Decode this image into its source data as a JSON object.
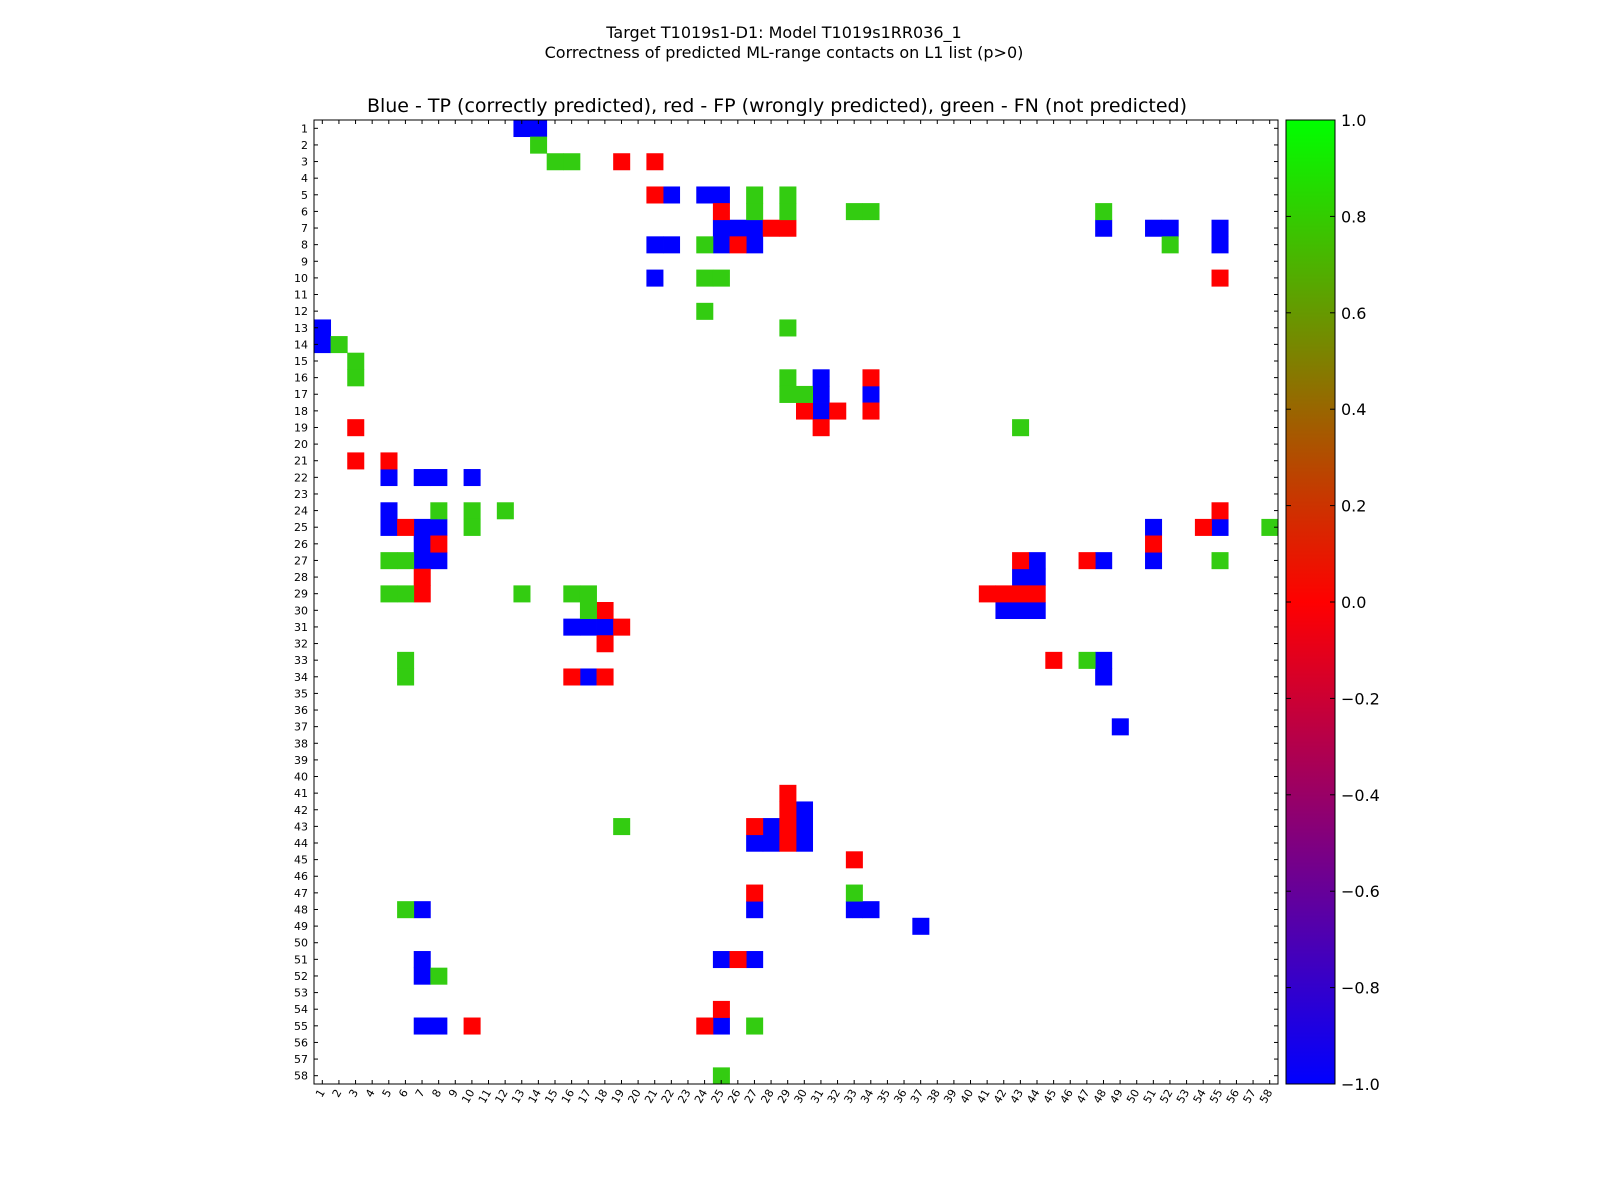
{
  "figure": {
    "suptitle_line1": "Target T1019s1-D1: Model T1019s1RR036_1",
    "suptitle_line2": "Correctness of predicted ML-range contacts on L1 list (p>0)"
  },
  "chart_data": {
    "type": "heatmap",
    "title": "Blue - TP (correctly predicted), red - FP (wrongly predicted), green - FN (not predicted)",
    "n": 58,
    "x_tick_labels": [
      "1",
      "2",
      "3",
      "4",
      "5",
      "6",
      "7",
      "8",
      "9",
      "10",
      "11",
      "12",
      "13",
      "14",
      "15",
      "16",
      "17",
      "18",
      "19",
      "20",
      "21",
      "22",
      "23",
      "24",
      "25",
      "26",
      "27",
      "28",
      "29",
      "30",
      "31",
      "32",
      "33",
      "34",
      "35",
      "36",
      "37",
      "38",
      "39",
      "40",
      "41",
      "42",
      "43",
      "44",
      "45",
      "46",
      "47",
      "48",
      "49",
      "50",
      "51",
      "52",
      "53",
      "54",
      "55",
      "56",
      "57",
      "58"
    ],
    "y_tick_labels": [
      "1",
      "2",
      "3",
      "4",
      "5",
      "6",
      "7",
      "8",
      "9",
      "10",
      "11",
      "12",
      "13",
      "14",
      "15",
      "16",
      "17",
      "18",
      "19",
      "20",
      "21",
      "22",
      "23",
      "24",
      "25",
      "26",
      "27",
      "28",
      "29",
      "30",
      "31",
      "32",
      "33",
      "34",
      "35",
      "36",
      "37",
      "38",
      "39",
      "40",
      "41",
      "42",
      "43",
      "44",
      "45",
      "46",
      "47",
      "48",
      "49",
      "50",
      "51",
      "52",
      "53",
      "54",
      "55",
      "56",
      "57",
      "58"
    ],
    "colorbar": {
      "vmin": -1.0,
      "vmax": 1.0,
      "stops": [
        {
          "value": -1.0,
          "color": "#0000ff"
        },
        {
          "value": 0.0,
          "color": "#ff0000"
        },
        {
          "value": 1.0,
          "color": "#00ff00"
        }
      ],
      "tick_labels": [
        "−1.0",
        "−0.8",
        "−0.6",
        "−0.4",
        "−0.2",
        "0.0",
        "0.2",
        "0.4",
        "0.6",
        "0.8",
        "1.0"
      ]
    },
    "cell_colors": {
      "TP": "#0000ff",
      "FP": "#ff0000",
      "FN": "#33cc11"
    },
    "legend": {
      "TP": "correctly predicted",
      "FP": "wrongly predicted",
      "FN": "not predicted"
    },
    "tp": [
      [
        13,
        1
      ],
      [
        14,
        1
      ],
      [
        22,
        5
      ],
      [
        24,
        5
      ],
      [
        25,
        5
      ],
      [
        21,
        8
      ],
      [
        22,
        8
      ],
      [
        25,
        7
      ],
      [
        25,
        8
      ],
      [
        26,
        7
      ],
      [
        27,
        7
      ],
      [
        48,
        7
      ],
      [
        51,
        7
      ],
      [
        52,
        7
      ],
      [
        55,
        7
      ],
      [
        55,
        8
      ],
      [
        27,
        8
      ],
      [
        21,
        10
      ],
      [
        1,
        13
      ],
      [
        1,
        14
      ],
      [
        31,
        16
      ],
      [
        31,
        17
      ],
      [
        34,
        17
      ],
      [
        31,
        18
      ],
      [
        5,
        22
      ],
      [
        7,
        22
      ],
      [
        8,
        22
      ],
      [
        10,
        22
      ],
      [
        5,
        24
      ],
      [
        5,
        25
      ],
      [
        7,
        25
      ],
      [
        8,
        25
      ],
      [
        51,
        25
      ],
      [
        55,
        25
      ],
      [
        7,
        26
      ],
      [
        7,
        27
      ],
      [
        8,
        27
      ],
      [
        44,
        27
      ],
      [
        48,
        27
      ],
      [
        51,
        27
      ],
      [
        43,
        28
      ],
      [
        44,
        28
      ],
      [
        42,
        30
      ],
      [
        43,
        30
      ],
      [
        44,
        30
      ],
      [
        16,
        31
      ],
      [
        17,
        31
      ],
      [
        18,
        31
      ],
      [
        48,
        33
      ],
      [
        17,
        34
      ],
      [
        48,
        34
      ],
      [
        49,
        37
      ],
      [
        30,
        42
      ],
      [
        28,
        43
      ],
      [
        30,
        43
      ],
      [
        27,
        44
      ],
      [
        28,
        44
      ],
      [
        30,
        44
      ],
      [
        7,
        48
      ],
      [
        27,
        48
      ],
      [
        33,
        48
      ],
      [
        34,
        48
      ],
      [
        37,
        49
      ],
      [
        25,
        51
      ],
      [
        27,
        51
      ],
      [
        7,
        51
      ],
      [
        7,
        52
      ],
      [
        7,
        55
      ],
      [
        8,
        55
      ],
      [
        25,
        55
      ]
    ],
    "fp": [
      [
        19,
        3
      ],
      [
        21,
        3
      ],
      [
        21,
        5
      ],
      [
        25,
        6
      ],
      [
        28,
        7
      ],
      [
        29,
        7
      ],
      [
        26,
        8
      ],
      [
        55,
        10
      ],
      [
        34,
        16
      ],
      [
        30,
        18
      ],
      [
        32,
        18
      ],
      [
        34,
        18
      ],
      [
        3,
        19
      ],
      [
        31,
        19
      ],
      [
        3,
        21
      ],
      [
        5,
        21
      ],
      [
        55,
        24
      ],
      [
        6,
        25
      ],
      [
        54,
        25
      ],
      [
        8,
        26
      ],
      [
        51,
        26
      ],
      [
        43,
        27
      ],
      [
        47,
        27
      ],
      [
        7,
        28
      ],
      [
        7,
        29
      ],
      [
        41,
        29
      ],
      [
        42,
        29
      ],
      [
        43,
        29
      ],
      [
        44,
        29
      ],
      [
        18,
        30
      ],
      [
        19,
        31
      ],
      [
        18,
        32
      ],
      [
        45,
        33
      ],
      [
        16,
        34
      ],
      [
        18,
        34
      ],
      [
        29,
        41
      ],
      [
        29,
        42
      ],
      [
        27,
        43
      ],
      [
        29,
        43
      ],
      [
        29,
        44
      ],
      [
        33,
        45
      ],
      [
        27,
        47
      ],
      [
        26,
        51
      ],
      [
        25,
        54
      ],
      [
        10,
        55
      ],
      [
        24,
        55
      ]
    ],
    "fn": [
      [
        14,
        2
      ],
      [
        15,
        3
      ],
      [
        16,
        3
      ],
      [
        27,
        5
      ],
      [
        29,
        5
      ],
      [
        27,
        6
      ],
      [
        29,
        6
      ],
      [
        33,
        6
      ],
      [
        34,
        6
      ],
      [
        48,
        6
      ],
      [
        24,
        8
      ],
      [
        52,
        8
      ],
      [
        24,
        10
      ],
      [
        25,
        10
      ],
      [
        24,
        12
      ],
      [
        29,
        13
      ],
      [
        2,
        14
      ],
      [
        3,
        15
      ],
      [
        3,
        16
      ],
      [
        29,
        16
      ],
      [
        29,
        17
      ],
      [
        30,
        17
      ],
      [
        43,
        19
      ],
      [
        8,
        24
      ],
      [
        10,
        24
      ],
      [
        12,
        24
      ],
      [
        10,
        25
      ],
      [
        58,
        25
      ],
      [
        5,
        27
      ],
      [
        6,
        27
      ],
      [
        55,
        27
      ],
      [
        5,
        29
      ],
      [
        6,
        29
      ],
      [
        13,
        29
      ],
      [
        16,
        29
      ],
      [
        17,
        29
      ],
      [
        17,
        30
      ],
      [
        6,
        33
      ],
      [
        47,
        33
      ],
      [
        6,
        34
      ],
      [
        19,
        43
      ],
      [
        33,
        47
      ],
      [
        6,
        48
      ],
      [
        8,
        52
      ],
      [
        27,
        55
      ],
      [
        25,
        58
      ]
    ]
  }
}
